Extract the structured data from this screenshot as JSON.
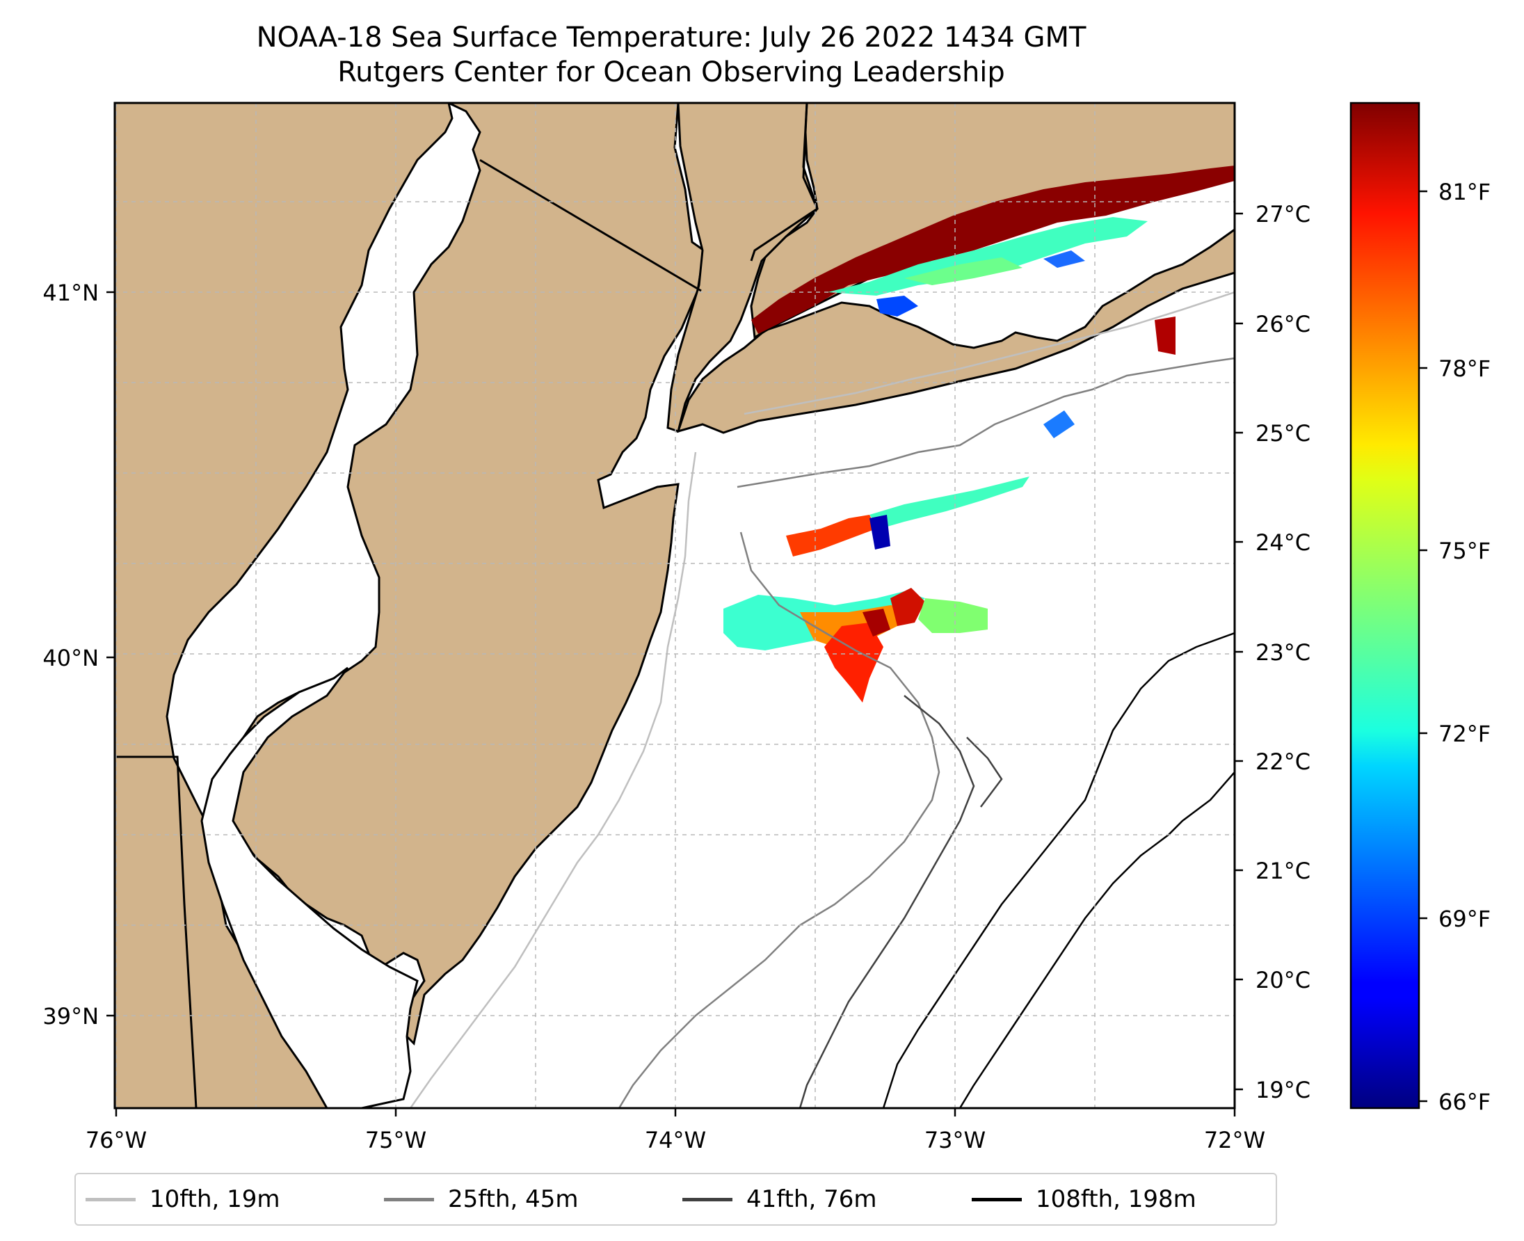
{
  "title": {
    "line1": "NOAA-18 Sea Surface Temperature: July 26 2022 1434 GMT",
    "line2": "Rutgers Center for Ocean Observing Leadership"
  },
  "map": {
    "lon_range": [
      -76.0,
      -72.0
    ],
    "lat_range": [
      38.7,
      41.5
    ],
    "land_color": "#D2B48C",
    "water_color": "#FFFFFF",
    "gridlines": true,
    "x_tick_labels": [
      "76°W",
      "75°W",
      "74°W",
      "73°W",
      "72°W"
    ],
    "y_tick_labels": [
      "41°N",
      "40°N",
      "39°N"
    ]
  },
  "colorbar": {
    "colormap": "jet",
    "celsius_labels": [
      "27°C",
      "26°C",
      "25°C",
      "24°C",
      "23°C",
      "22°C",
      "21°C",
      "20°C",
      "19°C"
    ],
    "fahrenheit_labels": [
      "81°F",
      "78°F",
      "75°F",
      "72°F",
      "69°F",
      "66°F"
    ],
    "range_f": [
      65.8,
      82.0
    ]
  },
  "legend": {
    "items": [
      {
        "label": "10fth, 19m",
        "color": "#BFBFBF"
      },
      {
        "label": "25fth, 45m",
        "color": "#808080"
      },
      {
        "label": "41fth, 76m",
        "color": "#404040"
      },
      {
        "label": "108fth, 198m",
        "color": "#000000"
      }
    ]
  }
}
